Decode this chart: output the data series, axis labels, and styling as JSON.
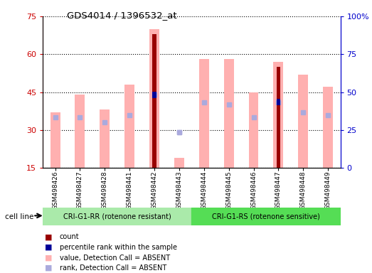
{
  "title": "GDS4014 / 1396532_at",
  "samples": [
    "GSM498426",
    "GSM498427",
    "GSM498428",
    "GSM498441",
    "GSM498442",
    "GSM498443",
    "GSM498444",
    "GSM498445",
    "GSM498446",
    "GSM498447",
    "GSM498448",
    "GSM498449"
  ],
  "group1_label": "CRI-G1-RR (rotenone resistant)",
  "group2_label": "CRI-G1-RS (rotenone sensitive)",
  "cell_line_label": "cell line",
  "ylim_left": [
    15,
    75
  ],
  "ylim_right": [
    0,
    100
  ],
  "yticks_left": [
    15,
    30,
    45,
    60,
    75
  ],
  "yticks_right": [
    0,
    25,
    50,
    75,
    100
  ],
  "pink_bar_top": [
    37,
    44,
    38,
    48,
    70,
    19,
    58,
    58,
    45,
    57,
    52,
    47
  ],
  "pink_bar_bottom": [
    15,
    15,
    15,
    15,
    15,
    15,
    15,
    15,
    15,
    15,
    15,
    15
  ],
  "blue_dot_y": [
    35,
    35,
    33,
    36,
    44,
    29,
    41,
    40,
    35,
    41,
    37,
    36
  ],
  "red_bar_top": [
    null,
    null,
    null,
    null,
    68,
    null,
    null,
    null,
    null,
    55,
    null,
    null
  ],
  "red_bar_bottom": [
    null,
    null,
    null,
    null,
    15,
    null,
    null,
    null,
    null,
    15,
    null,
    null
  ],
  "blue_bar_y": [
    null,
    null,
    null,
    null,
    44,
    null,
    null,
    null,
    null,
    41,
    null,
    null
  ],
  "blue_dot2_y": [
    null,
    null,
    null,
    null,
    null,
    29,
    null,
    null,
    null,
    null,
    null,
    null
  ],
  "color_pink": "#FFB0B0",
  "color_blue_dot": "#AAAADD",
  "color_red": "#990000",
  "color_blue_bar": "#000099",
  "color_group1_bg": "#AAEAAA",
  "color_group2_bg": "#55DD55",
  "color_axis_left": "#CC0000",
  "color_axis_right": "#0000CC",
  "color_sample_bg": "#D0D0D0",
  "legend_items": [
    "count",
    "percentile rank within the sample",
    "value, Detection Call = ABSENT",
    "rank, Detection Call = ABSENT"
  ],
  "legend_colors": [
    "#990000",
    "#000099",
    "#FFB0B0",
    "#AAAADD"
  ]
}
